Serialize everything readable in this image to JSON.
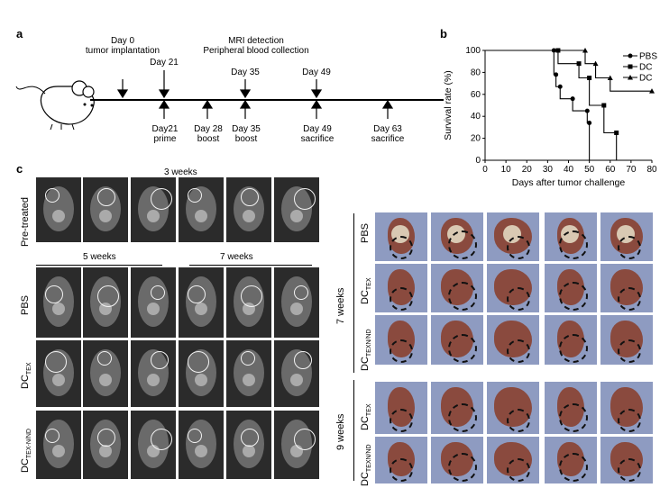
{
  "panel_a": {
    "letter": "a",
    "top_labels": [
      {
        "text": "Day 0\ntumor implantation"
      },
      {
        "text": "Day 21"
      },
      {
        "text": "MRI detection\nPeripheral blood collection"
      },
      {
        "text": "Day 35"
      },
      {
        "text": "Day 49"
      }
    ],
    "bottom_labels": [
      {
        "text": "Day21\nprime"
      },
      {
        "text": "Day 28\nboost"
      },
      {
        "text": "Day 35\nboost"
      },
      {
        "text": "Day 49\nsacrifice"
      },
      {
        "text": "Day 63\nsacrifice"
      }
    ]
  },
  "panel_b": {
    "letter": "b",
    "chart_data": {
      "type": "line",
      "xlabel": "Days after tumor challenge",
      "ylabel": "Survival rate (%)",
      "xlim": [
        0,
        80
      ],
      "ylim": [
        0,
        100
      ],
      "xticks": [
        "0",
        "10",
        "20",
        "30",
        "40",
        "50",
        "60",
        "70",
        "80"
      ],
      "yticks": [
        "0",
        "20",
        "40",
        "60",
        "80",
        "100"
      ],
      "series": [
        {
          "name": "PBS",
          "marker": "circle",
          "x": [
            0,
            33,
            34,
            36,
            42,
            49,
            50
          ],
          "y": [
            100,
            78,
            67,
            56,
            45,
            34,
            0
          ]
        },
        {
          "name": "DC",
          "marker": "square",
          "x": [
            0,
            35,
            45,
            50,
            57,
            63
          ],
          "y": [
            100,
            88,
            75,
            50,
            25,
            0
          ]
        },
        {
          "name": "DC",
          "marker": "triangle",
          "x": [
            0,
            48,
            53,
            60,
            80
          ],
          "y": [
            100,
            88,
            75,
            63,
            63
          ]
        }
      ]
    }
  },
  "panel_c": {
    "letter": "c",
    "week3": "3 weeks",
    "week5": "5 weeks",
    "week7": "7 weeks",
    "row_pretreated": "Pre-treated",
    "row_pbs": "PBS",
    "row_dctex": "DC",
    "row_dctex_sub": "TEX",
    "row_dctexnind": "DC",
    "row_dctexnind_sub": "TEX-N/ND"
  },
  "panel_d": {
    "group7": "7 weeks",
    "group9": "9 weeks",
    "row_pbs": "PBS",
    "row_dctex": "DC",
    "row_dctex_sub": "TEX",
    "row_dctexnind": "DC",
    "row_dctexnind_sub": "TEXN/ND",
    "row9_dctex": "DC",
    "row9_dctex_sub": "TEX",
    "row9_dctexnind": "DC",
    "row9_dctexnind_sub": "TEXN/ND"
  }
}
